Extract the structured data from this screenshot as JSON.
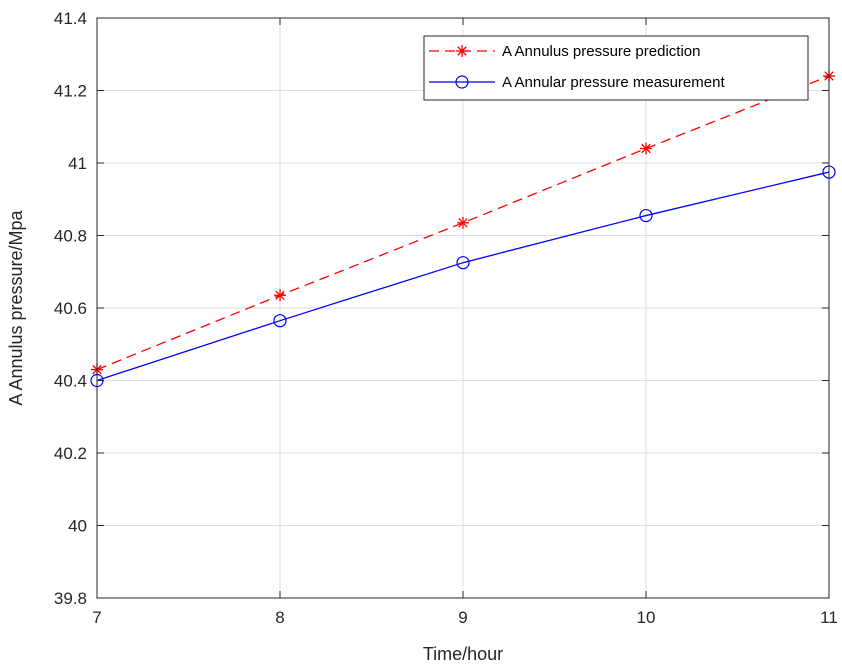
{
  "chart_data": {
    "type": "line",
    "xlabel": "Time/hour",
    "ylabel": "A Annulus pressure/Mpa",
    "xlim": [
      7,
      11
    ],
    "ylim": [
      39.8,
      41.4
    ],
    "x_ticks": [
      7,
      8,
      9,
      10,
      11
    ],
    "y_ticks": [
      39.8,
      40,
      40.2,
      40.4,
      40.6,
      40.8,
      41,
      41.2,
      41.4
    ],
    "grid": true,
    "legend_position": "top-right",
    "x": [
      7,
      8,
      9,
      10,
      11
    ],
    "series": [
      {
        "name": "A Annulus pressure prediction",
        "values": [
          40.43,
          40.635,
          40.835,
          41.04,
          41.24
        ],
        "color": "#ff0000",
        "line_style": "dashed",
        "marker": "asterisk"
      },
      {
        "name": "A Annular pressure measurement",
        "values": [
          40.4,
          40.565,
          40.725,
          40.855,
          40.975
        ],
        "color": "#0000ff",
        "line_style": "solid",
        "marker": "circle"
      }
    ]
  }
}
